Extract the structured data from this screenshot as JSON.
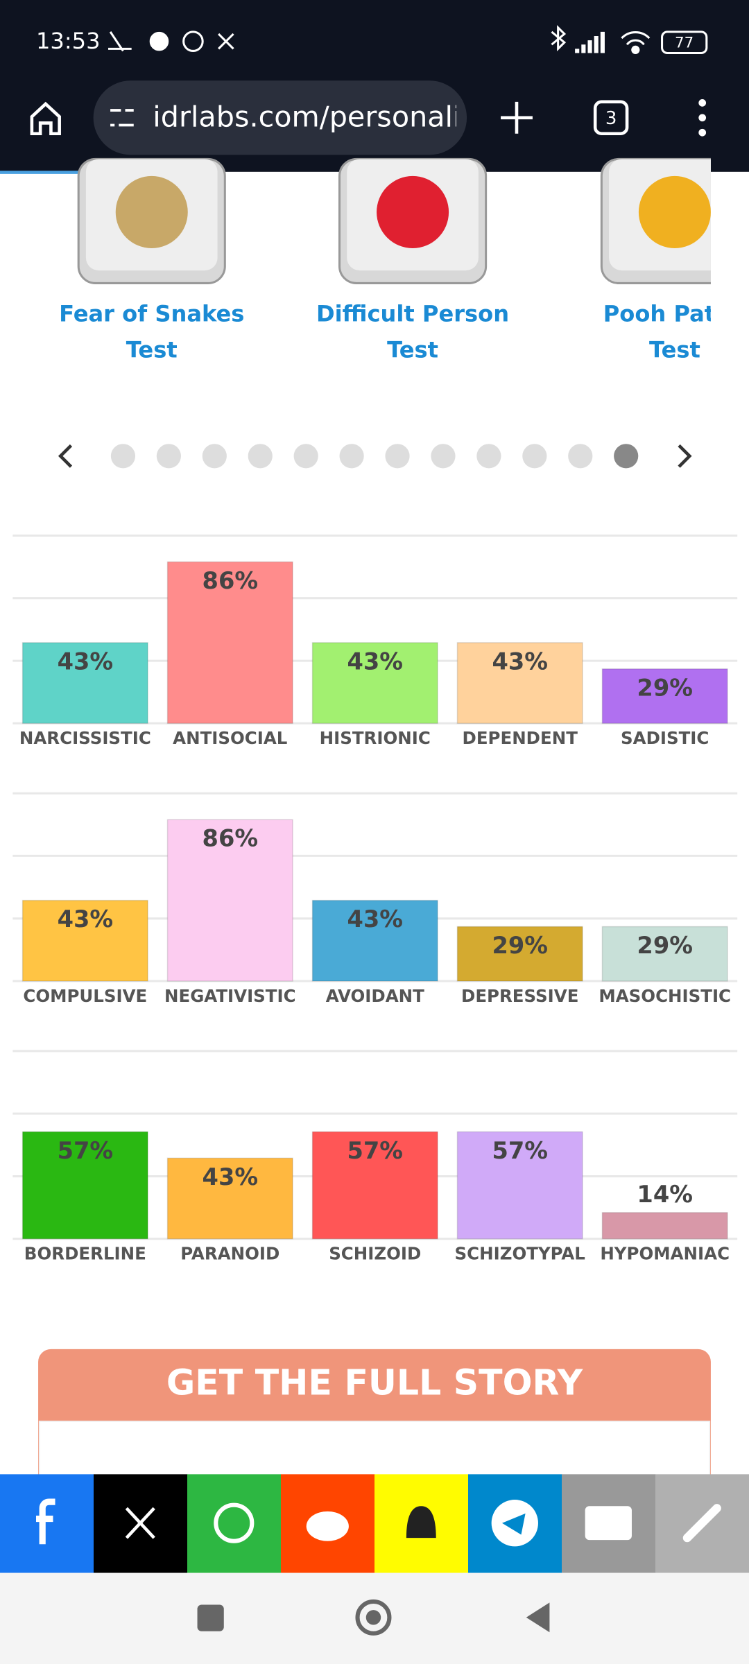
{
  "status_bar": {
    "time": "13:53",
    "battery": "77"
  },
  "browser": {
    "url": "idrlabs.com/personali",
    "tab_count": "3"
  },
  "carousel": {
    "items": [
      {
        "title": [
          "Fear of Snakes",
          "Test"
        ]
      },
      {
        "title": [
          "Difficult Person",
          "Test"
        ]
      },
      {
        "title": [
          "Pooh Patho",
          "Test"
        ]
      }
    ]
  },
  "chart_data": [
    {
      "type": "bar",
      "categories": [
        "NARCISSISTIC",
        "ANTISOCIAL",
        "HISTRIONIC",
        "DEPENDENT",
        "SADISTIC"
      ],
      "values": [
        43,
        86,
        43,
        43,
        29
      ],
      "value_labels": [
        "43%",
        "86%",
        "43%",
        "43%",
        "29%"
      ],
      "colors": [
        "#5fd3c8",
        "#ff8c8c",
        "#a2f070",
        "#ffd29c",
        "#b070f0"
      ],
      "ylim": [
        0,
        100
      ],
      "yticks": [
        0,
        33.3,
        66.7,
        100
      ],
      "grid": true
    },
    {
      "type": "bar",
      "categories": [
        "COMPULSIVE",
        "NEGATIVISTIC",
        "AVOIDANT",
        "DEPRESSIVE",
        "MASOCHISTIC"
      ],
      "values": [
        43,
        86,
        43,
        29,
        29
      ],
      "value_labels": [
        "43%",
        "86%",
        "43%",
        "29%",
        "29%"
      ],
      "colors": [
        "#ffc444",
        "#fcccf0",
        "#4aaad6",
        "#d4aa30",
        "#c8e0d8"
      ],
      "ylim": [
        0,
        100
      ],
      "yticks": [
        0,
        33.3,
        66.7,
        100
      ],
      "grid": true
    },
    {
      "type": "bar",
      "categories": [
        "BORDERLINE",
        "PARANOID",
        "SCHIZOID",
        "SCHIZOTYPAL",
        "HYPOMANIAC"
      ],
      "values": [
        57,
        43,
        57,
        57,
        14
      ],
      "value_labels": [
        "57%",
        "43%",
        "57%",
        "57%",
        "14%"
      ],
      "colors": [
        "#2ab812",
        "#ffb840",
        "#ff5656",
        "#d0aaf8",
        "#d898a8"
      ],
      "ylim": [
        0,
        100
      ],
      "yticks": [
        0,
        33.3,
        66.7,
        100
      ],
      "grid": true
    }
  ],
  "cta": {
    "title": "GET THE FULL STORY"
  }
}
